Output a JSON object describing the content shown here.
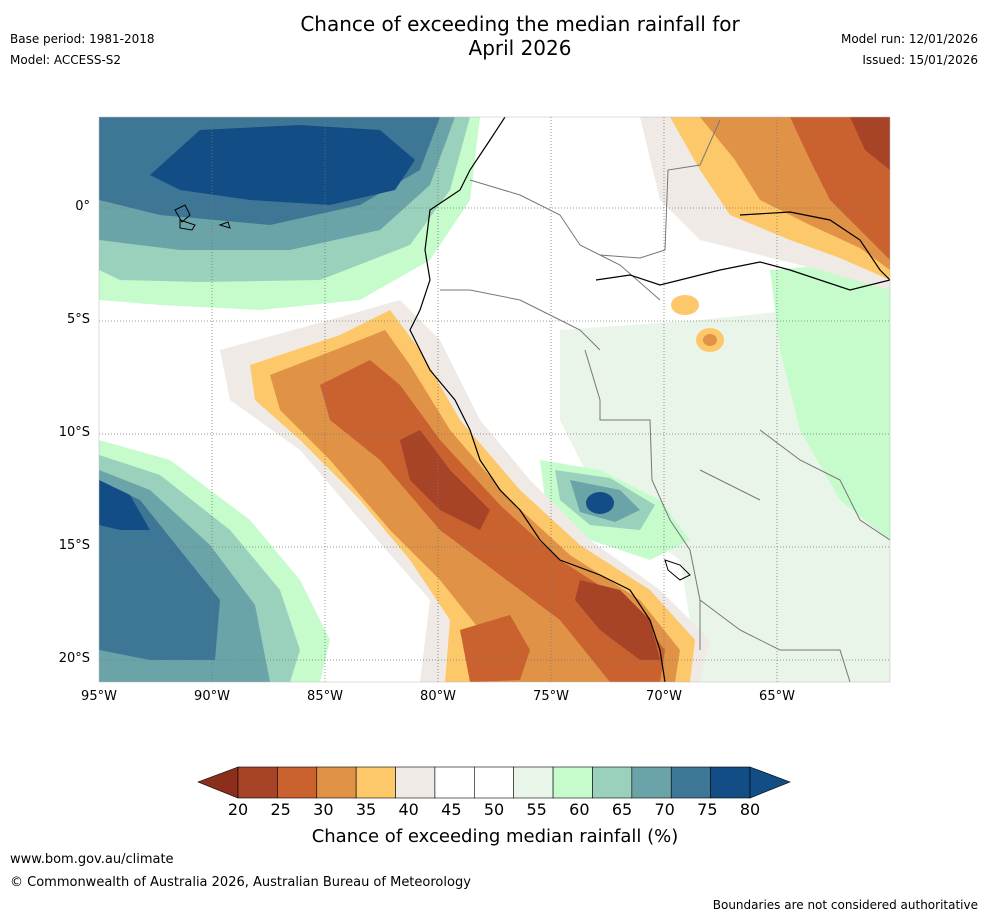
{
  "header": {
    "base_period": "Base period: 1981-2018",
    "model": "Model: ACCESS-S2",
    "title_line1": "Chance of exceeding the median rainfall for",
    "title_line2": "April 2026",
    "model_run": "Model run: 12/01/2026",
    "issued": "Issued: 15/01/2026"
  },
  "map": {
    "lon_range": [
      -95,
      -60
    ],
    "lat_range": [
      -21,
      4
    ],
    "lat_ticks": [
      {
        "value": 0,
        "label": "0°"
      },
      {
        "value": -5,
        "label": "5°S"
      },
      {
        "value": -10,
        "label": "10°S"
      },
      {
        "value": -15,
        "label": "15°S"
      },
      {
        "value": -20,
        "label": "20°S"
      }
    ],
    "lon_ticks": [
      {
        "value": -95,
        "label": "95°W"
      },
      {
        "value": -90,
        "label": "90°W"
      },
      {
        "value": -85,
        "label": "85°W"
      },
      {
        "value": -80,
        "label": "80°W"
      },
      {
        "value": -75,
        "label": "75°W"
      },
      {
        "value": -70,
        "label": "70°W"
      },
      {
        "value": -65,
        "label": "65°W"
      }
    ]
  },
  "colorbar": {
    "labels": [
      "20",
      "25",
      "30",
      "35",
      "40",
      "45",
      "50",
      "55",
      "60",
      "65",
      "70",
      "75",
      "80"
    ],
    "colors": [
      "#a74327",
      "#c9622f",
      "#e09246",
      "#fdc86a",
      "#efeae6",
      "#ffffff",
      "#ffffff",
      "#e9f5e9",
      "#c6fbcc",
      "#9ad1bc",
      "#6ba4a8",
      "#3e7795",
      "#134d85"
    ],
    "under_color": "#8b2e1c",
    "over_color": "#134d85",
    "title": "Chance of exceeding median rainfall (%)"
  },
  "footer": {
    "url": "www.bom.gov.au/climate",
    "copyright": "© Commonwealth of Australia 2026, Australian Bureau of Meteorology",
    "disclaimer": "Boundaries are not considered authoritative"
  }
}
